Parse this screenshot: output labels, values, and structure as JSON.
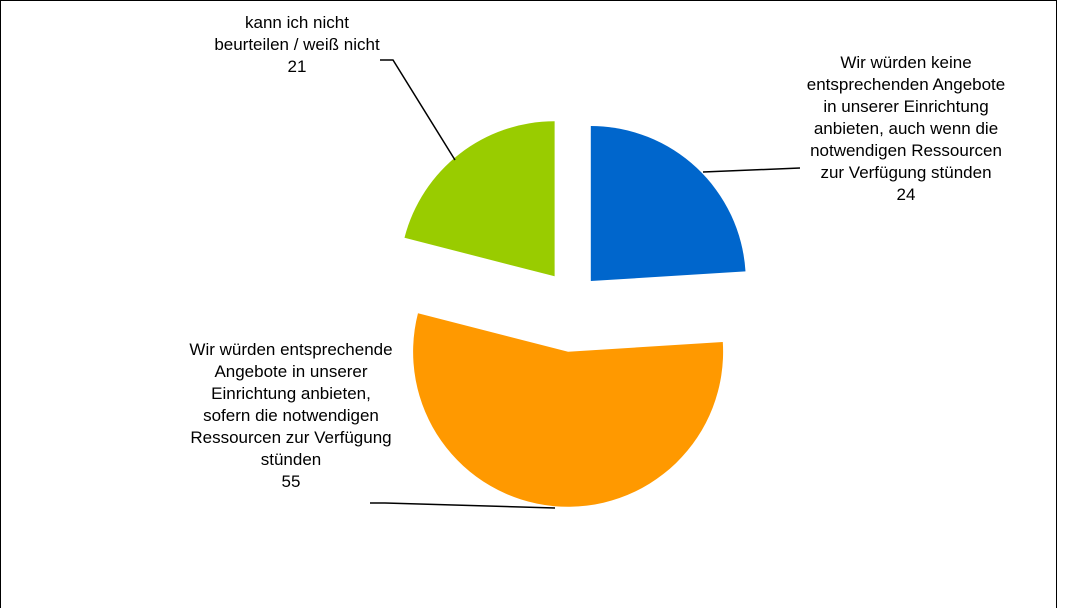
{
  "chart_data": {
    "type": "pie",
    "categories": [
      "Wir würden keine entsprechenden Angebote in unserer Einrichtung anbieten, auch wenn die notwendigen Ressourcen zur Verfügung stünden",
      "Wir würden entsprechende Angebote in unserer Einrichtung anbieten, sofern die notwendigen Ressourcen zur Verfügung stünden",
      "kann ich nicht beurteilen / weiß nicht"
    ],
    "values": [
      24,
      55,
      21
    ],
    "colors": [
      "#0066cc",
      "#ff9900",
      "#99cc00"
    ]
  }
}
